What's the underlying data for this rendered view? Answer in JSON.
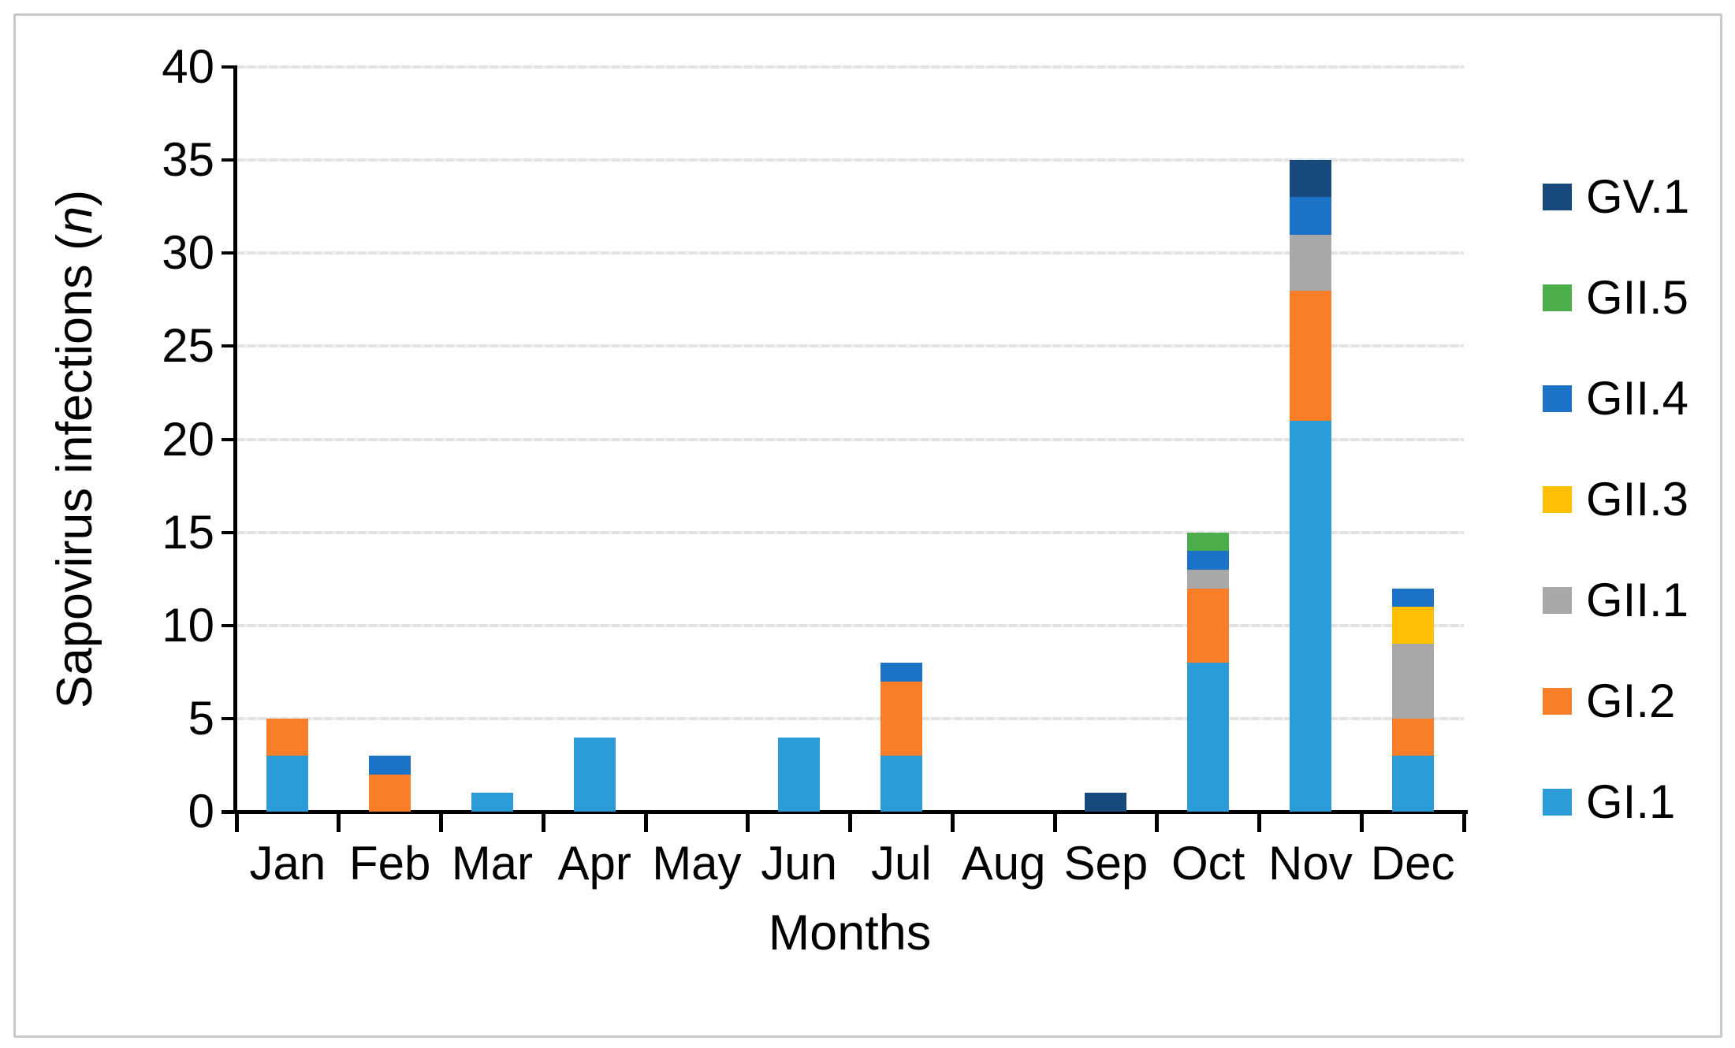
{
  "figure": {
    "ylabel_prefix": "Sapovirus infections (",
    "ylabel_italic": "n",
    "ylabel_suffix": ")",
    "xlabel": "Months"
  },
  "chart_data": {
    "type": "bar",
    "stacked": true,
    "title": "",
    "xlabel": "Months",
    "ylabel": "Sapovirus infections (n)",
    "ylim": [
      0,
      40
    ],
    "yticks": [
      0,
      5,
      10,
      15,
      20,
      25,
      30,
      35,
      40
    ],
    "grid": "horizontal",
    "legend_position": "right",
    "legend_order_top_to_bottom": [
      "GV.1",
      "GII.5",
      "GII.4",
      "GII.3",
      "GII.1",
      "GI.2",
      "GI.1"
    ],
    "categories": [
      "Jan",
      "Feb",
      "Mar",
      "Apr",
      "May",
      "Jun",
      "Jul",
      "Aug",
      "Sep",
      "Oct",
      "Nov",
      "Dec"
    ],
    "series": [
      {
        "name": "GI.1",
        "color": "#2B9CD8",
        "values": [
          3,
          0,
          1,
          4,
          0,
          4,
          3,
          0,
          0,
          8,
          21,
          3
        ]
      },
      {
        "name": "GI.2",
        "color": "#FA7D28",
        "values": [
          2,
          2,
          0,
          0,
          0,
          0,
          4,
          0,
          0,
          4,
          7,
          2
        ]
      },
      {
        "name": "GII.1",
        "color": "#A8A8A8",
        "values": [
          0,
          0,
          0,
          0,
          0,
          0,
          0,
          0,
          0,
          1,
          3,
          4
        ]
      },
      {
        "name": "GII.3",
        "color": "#FFC003",
        "values": [
          0,
          0,
          0,
          0,
          0,
          0,
          0,
          0,
          0,
          0,
          0,
          2
        ]
      },
      {
        "name": "GII.4",
        "color": "#1C72C6",
        "values": [
          0,
          1,
          0,
          0,
          0,
          0,
          1,
          0,
          0,
          1,
          2,
          1
        ]
      },
      {
        "name": "GII.5",
        "color": "#4BAE4B",
        "values": [
          0,
          0,
          0,
          0,
          0,
          0,
          0,
          0,
          0,
          1,
          0,
          0
        ]
      },
      {
        "name": "GV.1",
        "color": "#17497C",
        "values": [
          0,
          0,
          0,
          0,
          0,
          0,
          0,
          0,
          1,
          0,
          2,
          0
        ]
      }
    ],
    "monthly_totals": [
      5,
      3,
      1,
      4,
      0,
      4,
      8,
      0,
      1,
      15,
      35,
      12
    ]
  },
  "colors": {
    "axis": "#000000",
    "gridline": "#e2e2e2",
    "figure_border": "#c9c9c9"
  }
}
